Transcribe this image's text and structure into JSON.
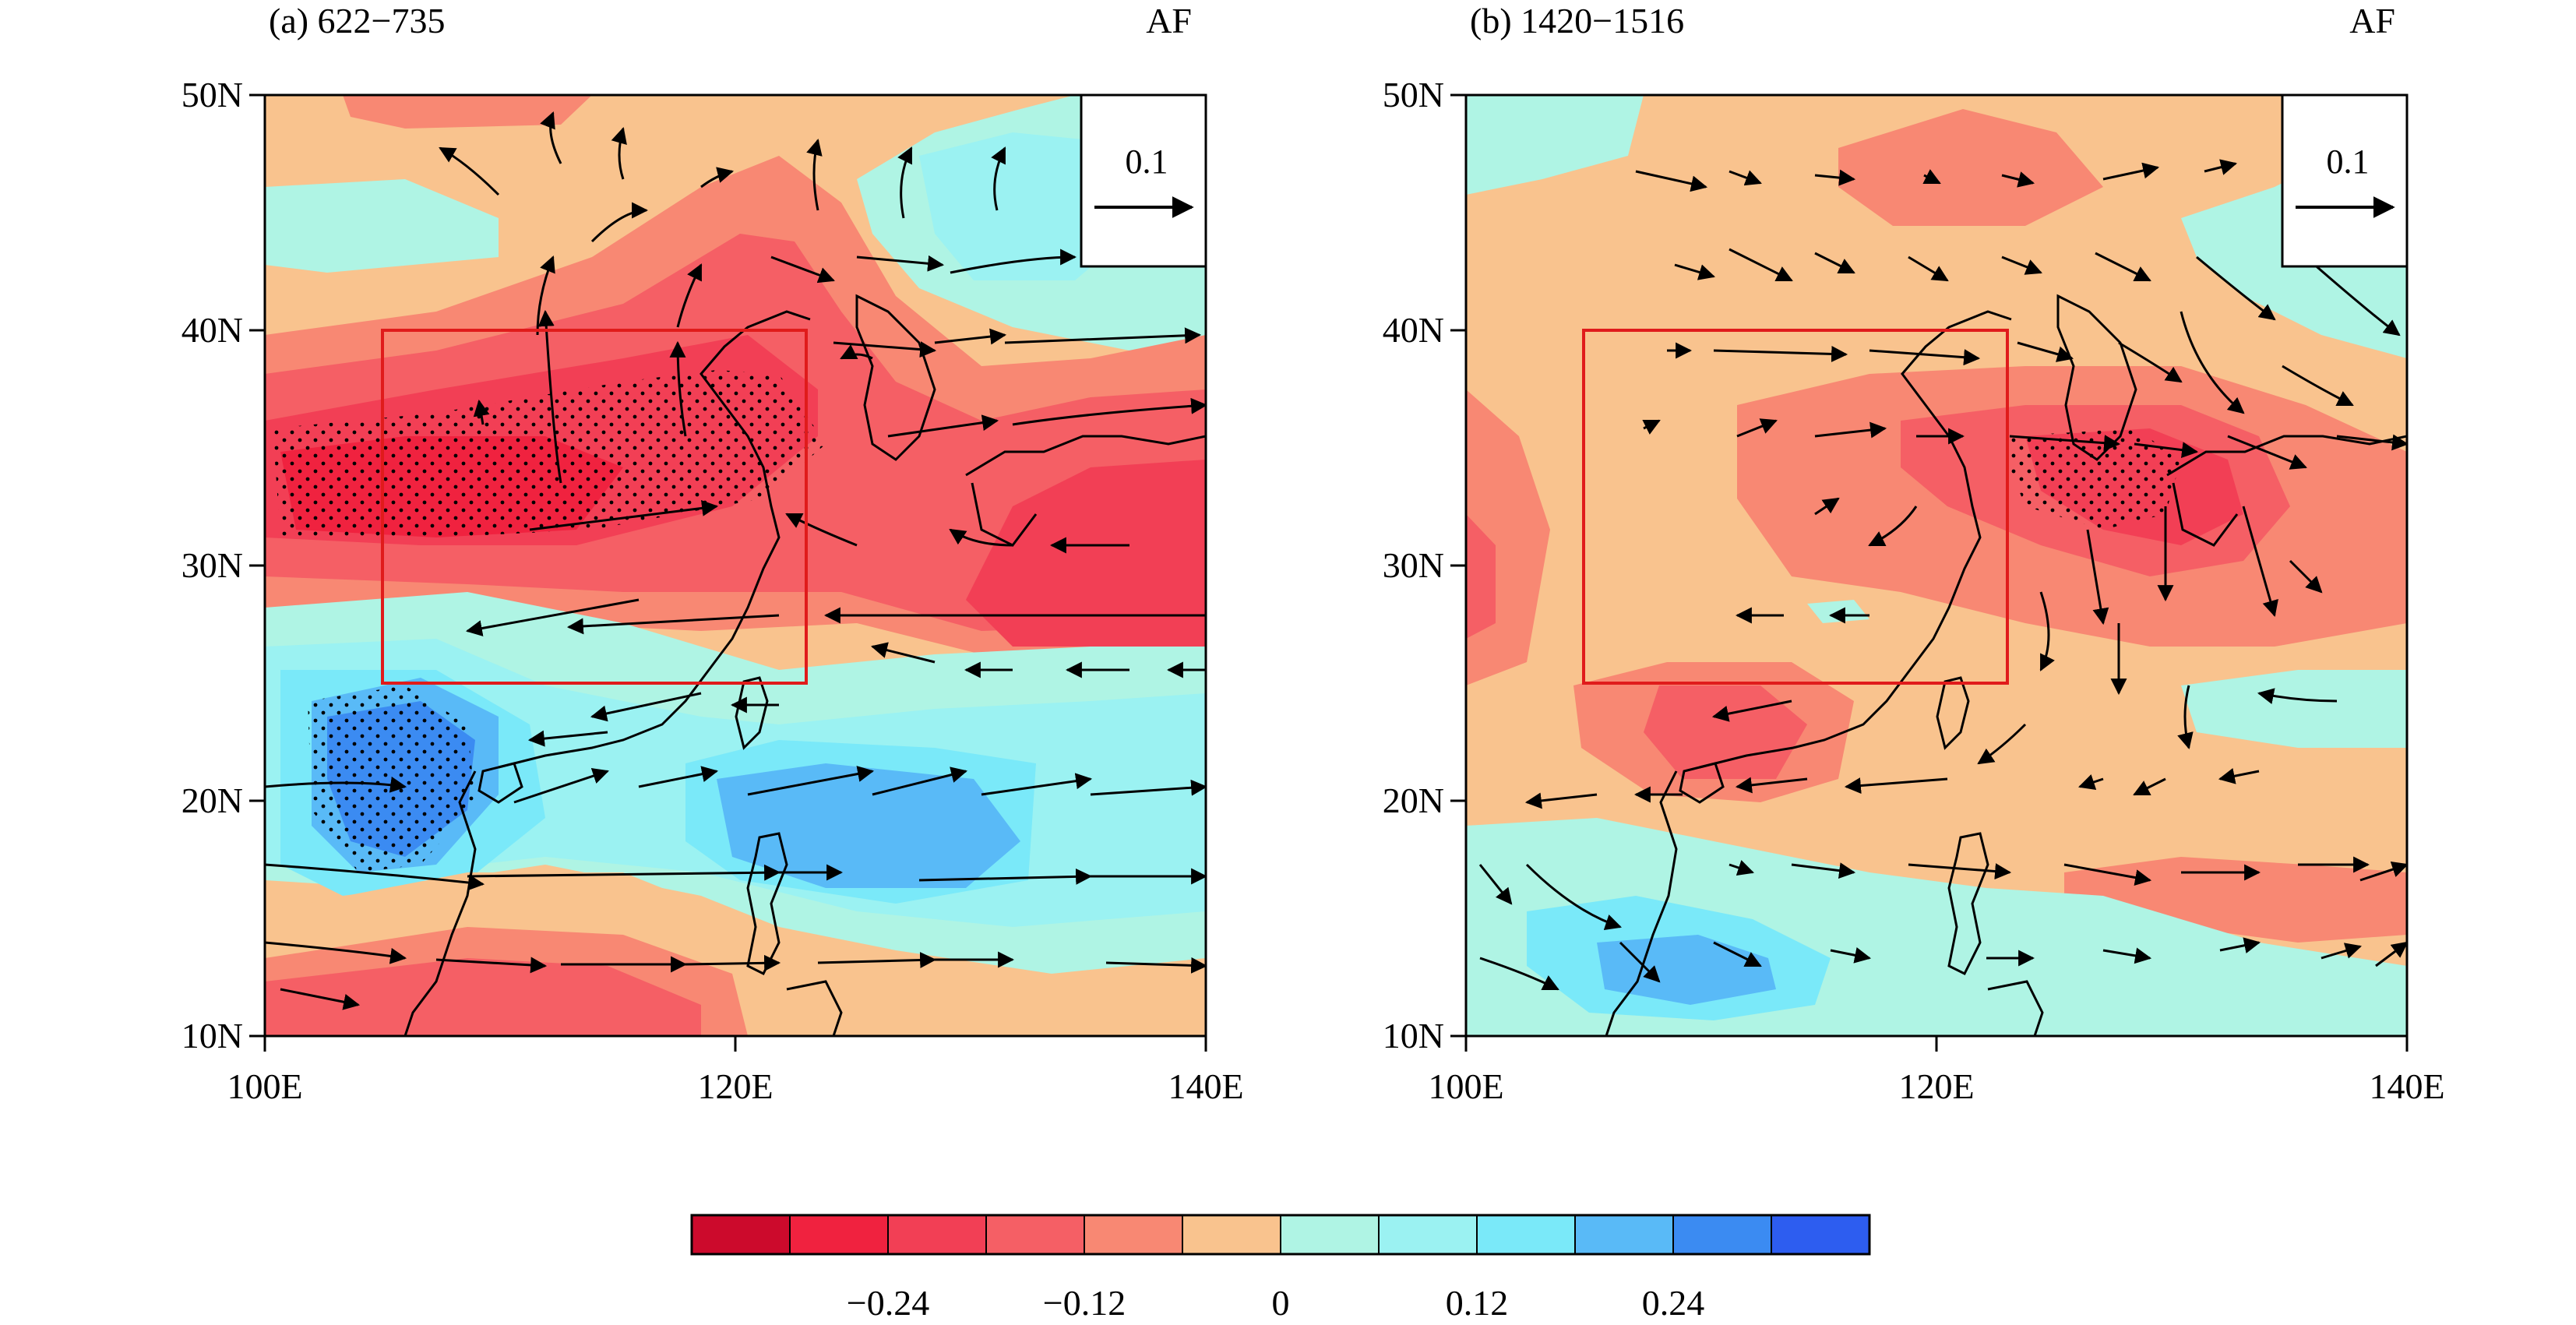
{
  "colorbar": {
    "colors": [
      "#cc0a2c",
      "#f0223f",
      "#f23f55",
      "#f55f65",
      "#f88873",
      "#f9c38e",
      "#aff4e4",
      "#9bf2f2",
      "#7ae9f9",
      "#59baf7",
      "#3b8bf2",
      "#2d5df0"
    ],
    "labels": [
      "−0.24",
      "−0.12",
      "0",
      "0.12",
      "0.24"
    ]
  },
  "panels": [
    {
      "title": "(a) 622−735",
      "tag": "AF",
      "ref_vector_label": "0.1",
      "lat_labels": [
        "50N",
        "40N",
        "30N",
        "20N",
        "10N"
      ],
      "lon_labels": [
        "100E",
        "120E",
        "140E"
      ],
      "box_region": {
        "lon_min": 105,
        "lon_max": 123,
        "lat_min": 25,
        "lat_max": 40
      }
    },
    {
      "title": "(b) 1420−1516",
      "tag": "AF",
      "ref_vector_label": "0.1",
      "lat_labels": [
        "50N",
        "40N",
        "30N",
        "20N",
        "10N"
      ],
      "lon_labels": [
        "100E",
        "120E",
        "140E"
      ],
      "box_region": {
        "lon_min": 105,
        "lon_max": 123,
        "lat_min": 25,
        "lat_max": 40
      }
    }
  ]
}
